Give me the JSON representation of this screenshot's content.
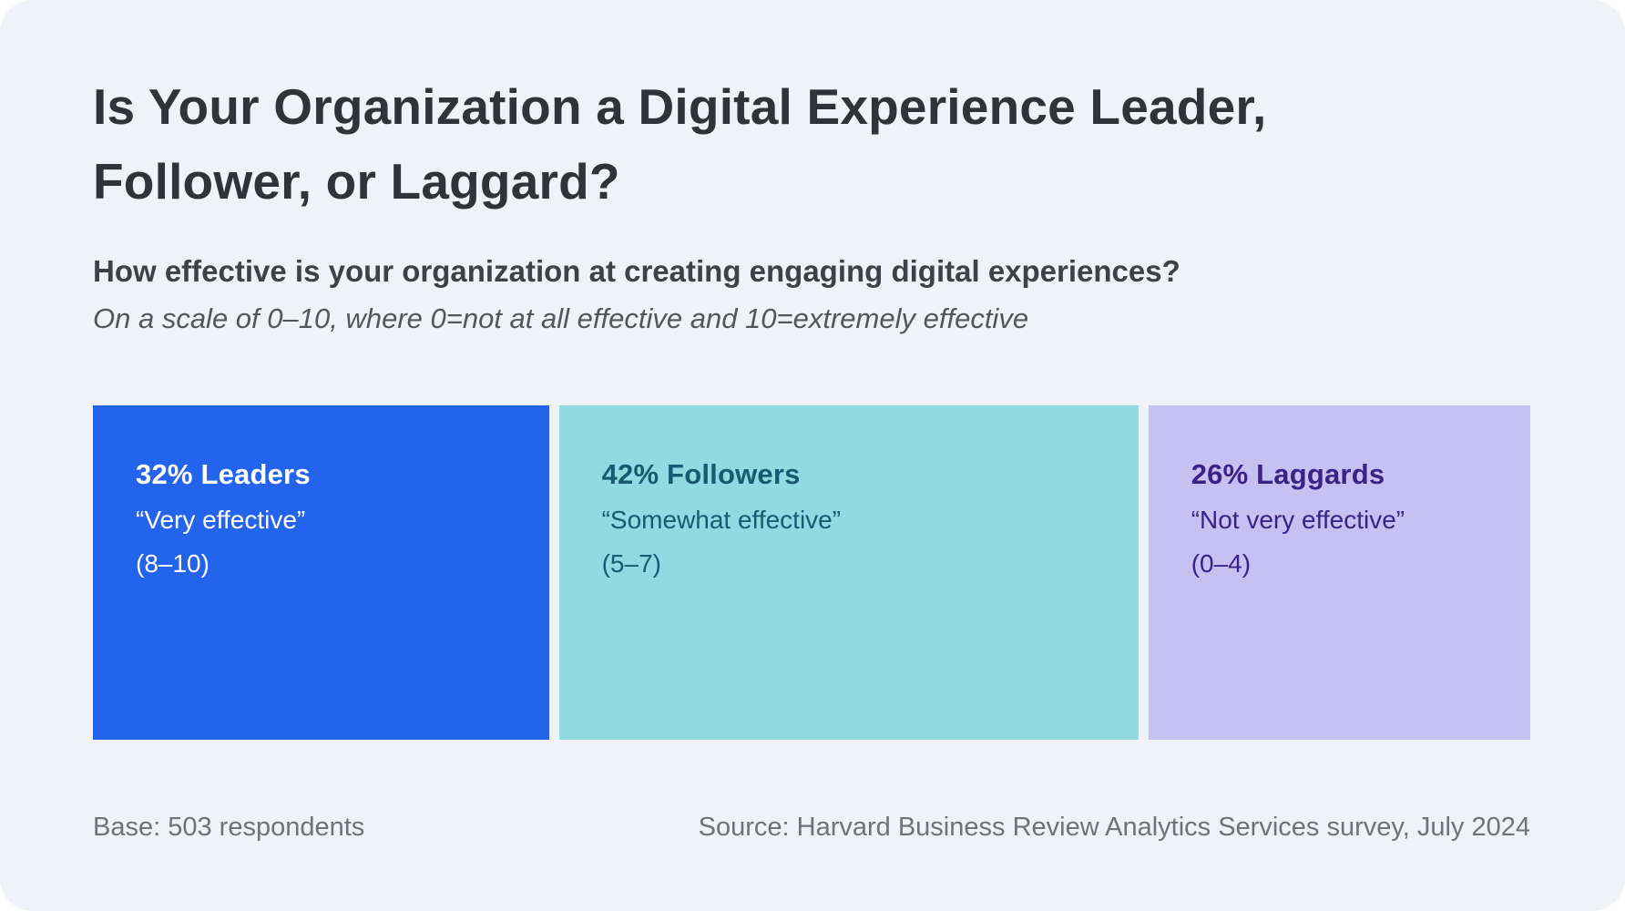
{
  "page": {
    "card_background": "#EFF2F7"
  },
  "header": {
    "title_line1": "Is Your Organization a Digital Experience Leader,",
    "title_line2": "Follower, or Laggard?",
    "question": "How effective is your organization at creating engaging digital experiences?",
    "scale_note": "On a scale of 0–10, where 0=not at all effective and 10=extremely effective"
  },
  "chart_data": {
    "type": "bar",
    "subtype": "proportional-width-segments",
    "title": "Is Your Organization a Digital Experience Leader, Follower, or Laggard?",
    "subtitle": "How effective is your organization at creating engaging digital experiences?",
    "scale_note": "On a scale of 0–10, where 0=not at all effective and 10=extremely effective",
    "unit": "%",
    "categories": [
      "Leaders",
      "Followers",
      "Laggards"
    ],
    "values": [
      32,
      42,
      26
    ],
    "segments": [
      {
        "percent": "32%",
        "label": "Leaders",
        "headline": "32% Leaders",
        "quote": "“Very effective”",
        "range": "(8–10)",
        "color": "#2463EC",
        "text_color": "#FFFFFF"
      },
      {
        "percent": "42%",
        "label": "Followers",
        "headline": "42% Followers",
        "quote": "“Somewhat effective”",
        "range": "(5–7)",
        "color": "#90DAE2",
        "text_color": "#185A70"
      },
      {
        "percent": "26%",
        "label": "Laggards",
        "headline": "26% Laggards",
        "quote": "“Not very effective”",
        "range": "(0–4)",
        "color": "#C7C0F2",
        "text_color": "#3A2383"
      }
    ]
  },
  "footer": {
    "base": "Base: 503 respondents",
    "source": "Source: Harvard Business Review Analytics Services survey, July 2024"
  }
}
